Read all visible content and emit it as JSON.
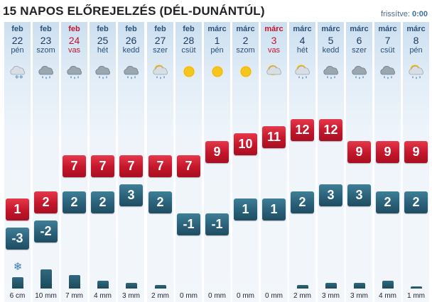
{
  "header": {
    "title": "15 NAPOS ELŐREJELZÉS (DÉL-DUNÁNTÚL)",
    "updated_label": "frissítve:",
    "updated_value": "0:00"
  },
  "colors": {
    "max_temp_box": "#c4162b",
    "min_temp_box": "#2a6179",
    "precip_bar": "#1d4a5c",
    "weekend_text": "#c0152f",
    "header_text": "#2c4f76"
  },
  "temperature_scale": {
    "max": 12,
    "min": -3
  },
  "precip_scale_max": 10,
  "days": [
    {
      "month": "feb",
      "day": "22",
      "weekday": "pén",
      "weekend": false,
      "icon": "snowy-cloud-icon",
      "max": 1,
      "min": -3,
      "precip_label": "6 cm",
      "precip_amount": 6,
      "snow": true
    },
    {
      "month": "feb",
      "day": "23",
      "weekday": "szom",
      "weekend": false,
      "icon": "rain-snow-cloud-icon",
      "max": 2,
      "min": -2,
      "precip_label": "10 mm",
      "precip_amount": 10,
      "snow": false
    },
    {
      "month": "feb",
      "day": "24",
      "weekday": "vas",
      "weekend": true,
      "icon": "rain-cloud-icon",
      "max": 7,
      "min": 2,
      "precip_label": "7 mm",
      "precip_amount": 7,
      "snow": false
    },
    {
      "month": "feb",
      "day": "25",
      "weekday": "hét",
      "weekend": false,
      "icon": "rain-cloud-icon",
      "max": 7,
      "min": 2,
      "precip_label": "4 mm",
      "precip_amount": 4,
      "snow": false
    },
    {
      "month": "feb",
      "day": "26",
      "weekday": "kedd",
      "weekend": false,
      "icon": "rain-cloud-icon",
      "max": 7,
      "min": 3,
      "precip_label": "3 mm",
      "precip_amount": 3,
      "snow": false
    },
    {
      "month": "feb",
      "day": "27",
      "weekday": "szer",
      "weekend": false,
      "icon": "sun-cloud-rain-icon",
      "max": 7,
      "min": 2,
      "precip_label": "2 mm",
      "precip_amount": 2,
      "snow": false
    },
    {
      "month": "feb",
      "day": "28",
      "weekday": "csüt",
      "weekend": false,
      "icon": "sun-icon",
      "max": 7,
      "min": -1,
      "precip_label": "0 mm",
      "precip_amount": 0,
      "snow": false
    },
    {
      "month": "márc",
      "day": "1",
      "weekday": "pén",
      "weekend": false,
      "icon": "sun-icon",
      "max": 9,
      "min": -1,
      "precip_label": "0 mm",
      "precip_amount": 0,
      "snow": false
    },
    {
      "month": "márc",
      "day": "2",
      "weekday": "szom",
      "weekend": false,
      "icon": "sun-icon",
      "max": 10,
      "min": 1,
      "precip_label": "0 mm",
      "precip_amount": 0,
      "snow": false
    },
    {
      "month": "márc",
      "day": "3",
      "weekday": "vas",
      "weekend": true,
      "icon": "partly-cloudy-icon",
      "max": 11,
      "min": 1,
      "precip_label": "0 mm",
      "precip_amount": 0,
      "snow": false
    },
    {
      "month": "márc",
      "day": "4",
      "weekday": "hét",
      "weekend": false,
      "icon": "sun-cloud-rain-icon",
      "max": 12,
      "min": 2,
      "precip_label": "2 mm",
      "precip_amount": 2,
      "snow": false
    },
    {
      "month": "márc",
      "day": "5",
      "weekday": "kedd",
      "weekend": false,
      "icon": "rain-cloud-icon",
      "max": 12,
      "min": 3,
      "precip_label": "3 mm",
      "precip_amount": 3,
      "snow": false
    },
    {
      "month": "márc",
      "day": "6",
      "weekday": "szer",
      "weekend": false,
      "icon": "rain-cloud-icon",
      "max": 9,
      "min": 3,
      "precip_label": "3 mm",
      "precip_amount": 3,
      "snow": false
    },
    {
      "month": "márc",
      "day": "7",
      "weekday": "csüt",
      "weekend": false,
      "icon": "rain-cloud-icon",
      "max": 9,
      "min": 2,
      "precip_label": "4 mm",
      "precip_amount": 4,
      "snow": false
    },
    {
      "month": "márc",
      "day": "8",
      "weekday": "pén",
      "weekend": false,
      "icon": "sun-cloud-rain-icon",
      "max": 9,
      "min": 2,
      "precip_label": "1 mm",
      "precip_amount": 1,
      "snow": false
    }
  ]
}
